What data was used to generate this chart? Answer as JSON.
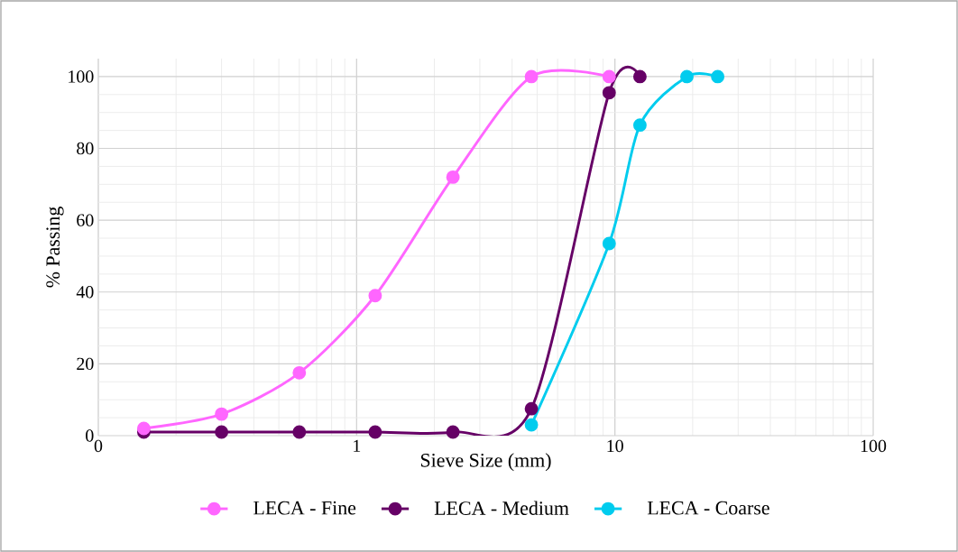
{
  "chart_data": {
    "type": "line",
    "xlabel": "Sieve Size (mm)",
    "ylabel": "% Passing",
    "log": "x",
    "xlim": [
      0.1,
      100
    ],
    "xticks": [
      {
        "value": 0.1,
        "label": "0"
      },
      1,
      10,
      100
    ],
    "ylim": [
      0,
      105
    ],
    "yticks": [
      0,
      20,
      40,
      60,
      80,
      100
    ],
    "grid": true,
    "legend": "bottom",
    "marker": "circle",
    "line_style": "solid",
    "series": [
      {
        "name": "LECA - Fine",
        "color": "#ff66ff",
        "x": [
          0.15,
          0.3,
          0.6,
          1.18,
          2.36,
          4.75,
          9.5
        ],
        "values": [
          2,
          6,
          17.5,
          39,
          72,
          100,
          100
        ]
      },
      {
        "name": "LECA - Medium",
        "color": "#660066",
        "x": [
          0.15,
          0.3,
          0.6,
          1.18,
          2.36,
          4.75,
          9.5,
          12.5
        ],
        "values": [
          1,
          1,
          1,
          1,
          1,
          7.5,
          95.5,
          100
        ]
      },
      {
        "name": "LECA - Coarse",
        "color": "#00ccee",
        "x": [
          4.75,
          9.5,
          12.5,
          19,
          25
        ],
        "values": [
          3,
          53.5,
          86.5,
          100,
          100
        ]
      }
    ]
  }
}
